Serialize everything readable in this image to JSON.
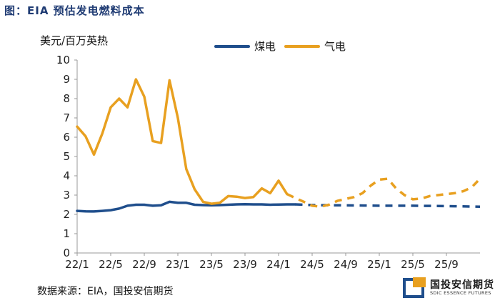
{
  "header": {
    "title": "图：EIA 预估发电燃料成本",
    "source": "数据来源：EIA，国投安信期货"
  },
  "logo": {
    "name_cn": "国投安信期货",
    "name_en": "SDIC ESSENCE FUTURES",
    "colors": {
      "blue": "#1f4e8c",
      "orange": "#e8a020"
    }
  },
  "chart_data": {
    "type": "line",
    "title": "EIA 预估发电燃料成本",
    "ylabel": "美元/百万英热",
    "xlabel": "",
    "ylim": [
      0,
      10
    ],
    "yticks": [
      0,
      1,
      2,
      3,
      4,
      5,
      6,
      7,
      8,
      9,
      10
    ],
    "grid": false,
    "legend_position": "top",
    "x_tick_labels": [
      "22/1",
      "22/5",
      "22/9",
      "23/1",
      "23/5",
      "23/9",
      "24/1",
      "24/5",
      "24/9",
      "25/1",
      "25/5",
      "25/9"
    ],
    "x_tick_month_index": [
      0,
      4,
      8,
      12,
      16,
      20,
      24,
      28,
      32,
      36,
      40,
      44
    ],
    "series": [
      {
        "name": "煤电",
        "color": "#1f4e8c",
        "style": "solid",
        "x": [
          0,
          1,
          2,
          3,
          4,
          5,
          6,
          7,
          8,
          9,
          10,
          11,
          12,
          13,
          14,
          15,
          16,
          17,
          18,
          19,
          20,
          21,
          22,
          23,
          24,
          25,
          26
        ],
        "values": [
          2.18,
          2.16,
          2.15,
          2.18,
          2.22,
          2.3,
          2.45,
          2.5,
          2.5,
          2.45,
          2.47,
          2.65,
          2.6,
          2.6,
          2.5,
          2.48,
          2.47,
          2.48,
          2.5,
          2.52,
          2.53,
          2.52,
          2.52,
          2.5,
          2.51,
          2.52,
          2.52
        ]
      },
      {
        "name": "煤电预测",
        "color": "#1f4e8c",
        "style": "dashed",
        "x": [
          26,
          28,
          32,
          36,
          40,
          44,
          48
        ],
        "values": [
          2.52,
          2.48,
          2.47,
          2.45,
          2.45,
          2.43,
          2.4
        ]
      },
      {
        "name": "气电",
        "color": "#e8a020",
        "style": "solid",
        "x": [
          0,
          1,
          2,
          3,
          4,
          5,
          6,
          7,
          8,
          9,
          10,
          11,
          12,
          13,
          14,
          15,
          16,
          17,
          18,
          19,
          20,
          21,
          22,
          23,
          24,
          25
        ],
        "values": [
          6.55,
          6.05,
          5.1,
          6.2,
          7.55,
          8.0,
          7.55,
          9.0,
          8.1,
          5.8,
          5.7,
          8.95,
          7.0,
          4.35,
          3.3,
          2.65,
          2.55,
          2.6,
          2.95,
          2.92,
          2.85,
          2.9,
          3.35,
          3.1,
          3.75,
          3.05
        ]
      },
      {
        "name": "气电预测",
        "color": "#e8a020",
        "style": "dashed",
        "x": [
          25,
          26,
          27,
          28,
          29,
          30,
          31,
          32,
          33,
          34,
          35,
          36,
          37,
          38,
          39,
          40,
          41,
          42,
          43,
          44,
          45,
          46,
          47,
          48
        ],
        "values": [
          3.05,
          2.85,
          2.65,
          2.45,
          2.4,
          2.5,
          2.7,
          2.8,
          2.9,
          3.1,
          3.5,
          3.8,
          3.85,
          3.35,
          3.0,
          2.78,
          2.82,
          2.95,
          3.0,
          3.05,
          3.1,
          3.2,
          3.4,
          3.85
        ]
      }
    ],
    "legend": [
      {
        "label": "煤电",
        "color": "#1f4e8c"
      },
      {
        "label": "气电",
        "color": "#e8a020"
      }
    ]
  }
}
